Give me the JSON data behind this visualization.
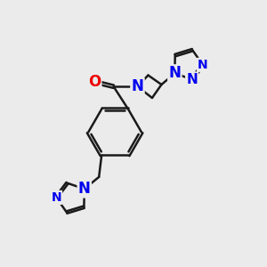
{
  "bg_color": "#ebebeb",
  "bond_color": "#1a1a1a",
  "N_color": "#0000ee",
  "O_color": "#ee0000",
  "bond_width": 1.8,
  "font_size_N": 11,
  "figsize": [
    3.0,
    3.0
  ],
  "dpi": 100,
  "xlim": [
    0,
    10
  ],
  "ylim": [
    0,
    10
  ]
}
